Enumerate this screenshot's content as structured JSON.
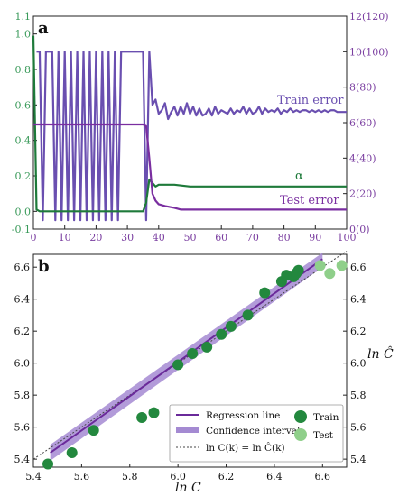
{
  "panel_a": {
    "letter": "a",
    "label_train": "Train error",
    "label_alpha": "α",
    "label_test": "Test error"
  },
  "panel_b": {
    "letter": "b",
    "xlabel": "ln C",
    "ylabel_right": "ln Ĉ",
    "legend": {
      "regression": "Regression line",
      "confidence": "Confidence interval",
      "identity": "ln C(k) = ln Ĉ(k)",
      "train": "Train",
      "test": "Test"
    }
  },
  "colors": {
    "green_axis": "#3a9a5a",
    "purple_axis": "#7a3ea0",
    "train_error": "#6a4fb0",
    "alpha": "#1e7a3a",
    "test_error": "#7a2ea0",
    "regression": "#6a2a9a",
    "confidence": "#a48ad2",
    "train_dot": "#23883e",
    "test_dot": "#8fcf8a",
    "identity": "#444444"
  },
  "chart_data": [
    {
      "type": "line",
      "x_range": [
        0,
        100
      ],
      "x_ticks": [
        "0",
        "10",
        "20",
        "30",
        "40",
        "50",
        "60",
        "70",
        "80",
        "90",
        "100"
      ],
      "left_ylim": [
        -0.1,
        1.1
      ],
      "left_ticks": [
        "-0.1",
        "0.0",
        "0.2",
        "0.4",
        "0.6",
        "0.8",
        "1.0",
        "1.1"
      ],
      "right_ylim": [
        0,
        12
      ],
      "right_ticks": [
        "0(0)",
        "2(20)",
        "4(40)",
        "6(60)",
        "8(80)",
        "10(100)",
        "12(120)"
      ],
      "series": [
        {
          "name": "Train error",
          "axis": "right",
          "x": [
            1,
            2,
            3,
            4,
            5,
            6,
            7,
            8,
            9,
            10,
            11,
            12,
            13,
            14,
            15,
            16,
            17,
            18,
            19,
            20,
            21,
            22,
            23,
            24,
            25,
            26,
            27,
            28,
            29,
            30,
            31,
            32,
            33,
            34,
            35,
            36,
            37,
            38,
            39,
            40,
            41,
            42,
            43,
            44,
            45,
            46,
            47,
            48,
            49,
            50,
            51,
            52,
            53,
            54,
            55,
            56,
            57,
            58,
            59,
            60,
            61,
            62,
            63,
            64,
            65,
            66,
            67,
            68,
            69,
            70,
            71,
            72,
            73,
            74,
            75,
            76,
            77,
            78,
            79,
            80,
            81,
            82,
            83,
            84,
            85,
            86,
            87,
            88,
            89,
            90,
            91,
            92,
            93,
            94,
            95,
            96,
            97,
            98,
            99,
            100
          ],
          "values": [
            10,
            10,
            0.5,
            10,
            10,
            10,
            0.5,
            10,
            0.5,
            10,
            0.5,
            10,
            0.5,
            10,
            0.5,
            10,
            0.5,
            10,
            0.5,
            10,
            0.5,
            10,
            0.5,
            10,
            0.5,
            10,
            0.5,
            10,
            10,
            10,
            10,
            10,
            10,
            10,
            10,
            0.5,
            10,
            7.0,
            7.3,
            6.5,
            6.7,
            7.1,
            6.2,
            6.6,
            6.9,
            6.4,
            6.9,
            6.5,
            7.1,
            6.5,
            6.9,
            6.4,
            6.8,
            6.4,
            6.5,
            6.8,
            6.4,
            6.9,
            6.5,
            6.7,
            6.6,
            6.5,
            6.8,
            6.5,
            6.7,
            6.6,
            6.9,
            6.5,
            6.8,
            6.5,
            6.6,
            6.9,
            6.5,
            6.8,
            6.6,
            6.7,
            6.6,
            6.8,
            6.5,
            6.7,
            6.6,
            6.8,
            6.6,
            6.7,
            6.6,
            6.7,
            6.7,
            6.6,
            6.7,
            6.6,
            6.7,
            6.6,
            6.7,
            6.6,
            6.7,
            6.7,
            6.6,
            6.6,
            6.6,
            6.6
          ]
        },
        {
          "name": "α",
          "axis": "left",
          "x": [
            0,
            1,
            2,
            5,
            10,
            15,
            20,
            25,
            30,
            33,
            35,
            36,
            37,
            38,
            39,
            40,
            42,
            45,
            50,
            55,
            60,
            65,
            70,
            75,
            80,
            85,
            90,
            95,
            100
          ],
          "values": [
            0.99,
            0.01,
            0.0,
            0.0,
            0.0,
            0.0,
            0.0,
            0.0,
            0.0,
            0.0,
            0.0,
            0.05,
            0.18,
            0.16,
            0.14,
            0.15,
            0.15,
            0.15,
            0.14,
            0.14,
            0.14,
            0.14,
            0.14,
            0.14,
            0.14,
            0.14,
            0.14,
            0.14,
            0.14
          ]
        },
        {
          "name": "Test error",
          "axis": "right",
          "x": [
            0,
            5,
            10,
            20,
            30,
            35,
            36,
            37,
            38,
            39,
            40,
            42,
            45,
            47,
            50,
            60,
            70,
            80,
            90,
            100
          ],
          "values": [
            5.9,
            5.9,
            5.9,
            5.9,
            5.9,
            5.9,
            5.8,
            4.0,
            2.0,
            1.6,
            1.4,
            1.3,
            1.2,
            1.1,
            1.1,
            1.1,
            1.1,
            1.1,
            1.1,
            1.1
          ]
        }
      ]
    },
    {
      "type": "scatter",
      "xlabel": "ln C",
      "ylabel": "ln Ĉ",
      "xlim": [
        5.4,
        6.7
      ],
      "ylim": [
        5.35,
        6.68
      ],
      "x_ticks": [
        "5.4",
        "5.6",
        "5.8",
        "6.0",
        "6.2",
        "6.4",
        "6.6"
      ],
      "y_ticks": [
        "5.4",
        "5.6",
        "5.8",
        "6.0",
        "6.2",
        "6.4",
        "6.6"
      ],
      "regression": {
        "x": [
          5.47,
          6.6
        ],
        "y": [
          5.44,
          6.65
        ]
      },
      "confidence": {
        "x": [
          5.47,
          6.6
        ],
        "lower": [
          5.39,
          6.6
        ],
        "upper": [
          5.49,
          6.69
        ]
      },
      "identity": {
        "x": [
          5.4,
          6.7
        ],
        "y": [
          5.4,
          6.7
        ]
      },
      "series": [
        {
          "name": "Train",
          "points": [
            [
              5.46,
              5.37
            ],
            [
              5.56,
              5.44
            ],
            [
              5.65,
              5.58
            ],
            [
              5.85,
              5.66
            ],
            [
              5.9,
              5.69
            ],
            [
              6.0,
              5.99
            ],
            [
              6.06,
              6.06
            ],
            [
              6.12,
              6.1
            ],
            [
              6.18,
              6.18
            ],
            [
              6.22,
              6.23
            ],
            [
              6.29,
              6.3
            ],
            [
              6.36,
              6.44
            ],
            [
              6.43,
              6.51
            ],
            [
              6.45,
              6.55
            ],
            [
              6.48,
              6.54
            ],
            [
              6.49,
              6.56
            ],
            [
              6.5,
              6.58
            ]
          ]
        },
        {
          "name": "Test",
          "points": [
            [
              6.59,
              6.61
            ],
            [
              6.63,
              6.56
            ],
            [
              6.68,
              6.61
            ]
          ]
        }
      ]
    }
  ]
}
